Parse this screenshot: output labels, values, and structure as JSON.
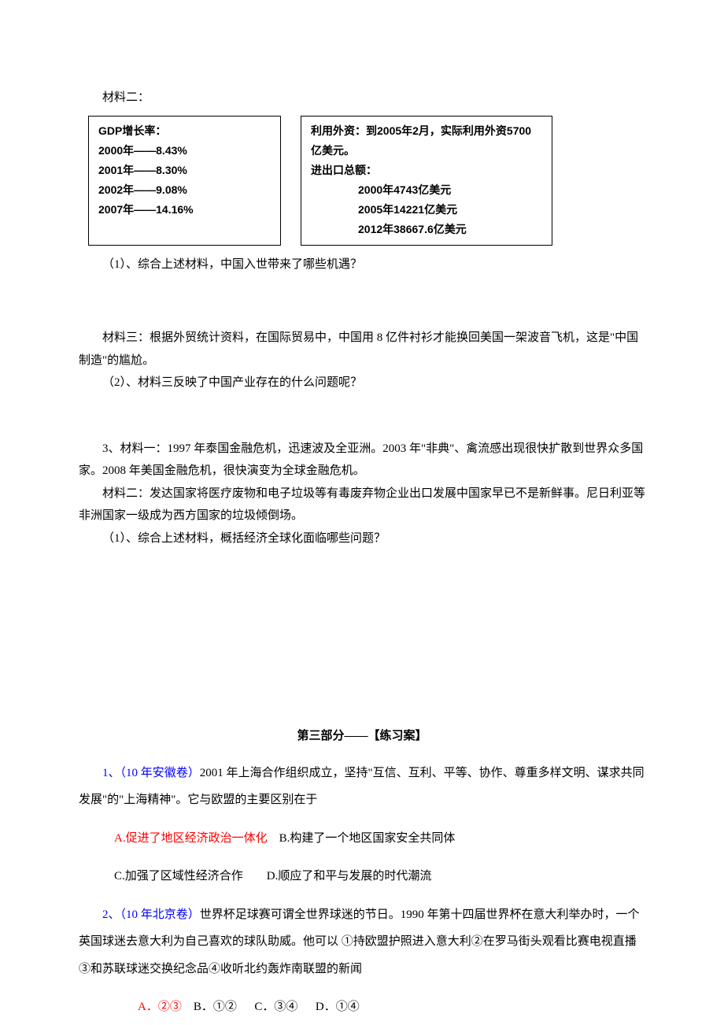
{
  "header": {
    "material2_label": "材料二："
  },
  "gdp_box": {
    "title": "GDP增长率：",
    "rows": [
      "2000年——8.43%",
      "2001年——8.30%",
      "2002年——9.08%",
      "2007年——14.16%"
    ]
  },
  "trade_box": {
    "line1": "利用外资：到2005年2月，实际利用外资5700亿美元。",
    "line2": "进出口总额：",
    "rows": [
      "2000年4743亿美元",
      "2005年14221亿美元",
      "2012年38667.6亿美元"
    ]
  },
  "q1": "（1）、综合上述材料，中国入世带来了哪些机遇？",
  "material3": {
    "line1": "材料三：根据外贸统计资料，在国际贸易中，中国用 8 亿件衬衫才能换回美国一架波音飞机，这是\"中国制造\"的尴尬。",
    "q2": "（2）、材料三反映了中国产业存在的什么问题呢？"
  },
  "q3": {
    "m1_a": "3、材料一：1997 年泰国金融危机，迅速波及全亚洲。2003 年\"非典\"、禽流感出现很快扩散到世界众多国家。2008 年美国金融危机，很快演变为全球金融危机。",
    "m2_a": "材料二：发达国家将医疗废物和电子垃圾等有毒废弃物企业出口发展中国家早已不是新鲜事。尼日利亚等非洲国家一级成为西方国家的垃圾倾倒场。",
    "question": "（1）、综合上述材料，概括经济全球化面临哪些问题？"
  },
  "part3": {
    "title": "第三部分——【练习案】",
    "ex1": {
      "label": "1、（10 年安徽卷）",
      "text": "2001 年上海合作组织成立，坚持\"互信、互利、平等、协作、尊重多样文明、谋求共同发展\"的\"上海精神\"。它与欧盟的主要区别在于",
      "opt_a": "A.促进了地区经济政治一体化",
      "opt_b": "B.构建了一个地区国家安全共同体",
      "opt_c": "C.加强了区域性经济合作",
      "opt_d": "D.顺应了和平与发展的时代潮流"
    },
    "ex2": {
      "label": "2、（10 年北京卷）",
      "text": "世界杯足球赛可谓全世界球迷的节日。1990 年第十四届世界杯在意大利举办时，一个英国球迷去意大利为自己喜欢的球队助威。他可以 ①持欧盟护照进入意大利②在罗马街头观看比赛电视直播 ③和苏联球迷交换纪念品④收听北约轰炸南联盟的新闻",
      "opt_a": "A．②③",
      "opt_b": "B．①②",
      "opt_c": "C．③④",
      "opt_d": "D．①④"
    }
  }
}
